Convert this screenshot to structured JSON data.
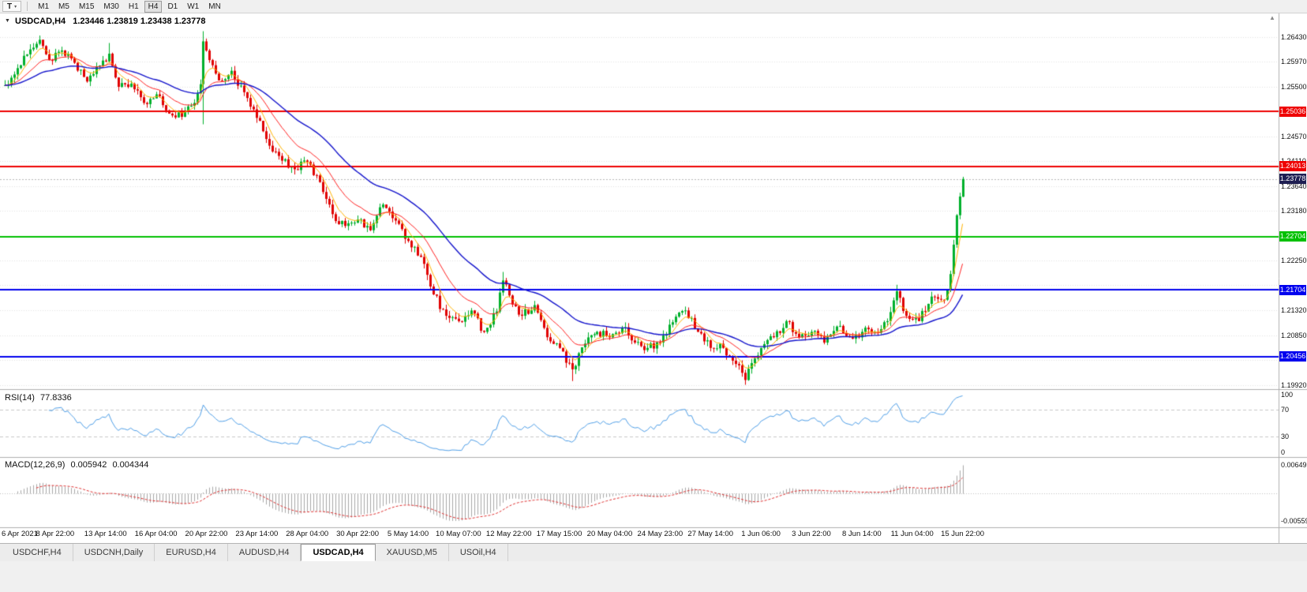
{
  "toolbar": {
    "tool_button_label": "T",
    "timeframes": [
      "M1",
      "M5",
      "M15",
      "M30",
      "H1",
      "H4",
      "D1",
      "W1",
      "MN"
    ],
    "active_timeframe": "H4"
  },
  "chart": {
    "title_symbol": "USDCAD,H4",
    "title_ohlc": "1.23446 1.23819 1.23438 1.23778",
    "current_price": {
      "value": "1.23778",
      "price": 1.23778,
      "color": "#1e1e52"
    },
    "hlines": [
      {
        "value": "1.25036",
        "price": 1.25036,
        "color": "#ee0000",
        "name": "resistance-line-1"
      },
      {
        "value": "1.24013",
        "price": 1.24013,
        "color": "#ee0000",
        "name": "resistance-line-2"
      },
      {
        "value": "1.22704",
        "price": 1.22704,
        "color": "#00c000",
        "name": "support-line-green"
      },
      {
        "value": "1.21704",
        "price": 1.21704,
        "color": "#0000ee",
        "name": "support-line-blue-1"
      },
      {
        "value": "1.20456",
        "price": 1.20456,
        "color": "#0000ee",
        "name": "support-line-blue-2"
      }
    ],
    "price_axis": {
      "ticks": [
        {
          "label": "1.26430",
          "price": 1.2643
        },
        {
          "label": "1.25970",
          "price": 1.2597
        },
        {
          "label": "1.25500",
          "price": 1.255
        },
        {
          "label": "1.25040",
          "price": 1.2504
        },
        {
          "label": "1.24570",
          "price": 1.2457
        },
        {
          "label": "1.24110",
          "price": 1.2411
        },
        {
          "label": "1.23640",
          "price": 1.2364
        },
        {
          "label": "1.23180",
          "price": 1.2318
        },
        {
          "label": "1.22710",
          "price": 1.2271
        },
        {
          "label": "1.22250",
          "price": 1.2225
        },
        {
          "label": "1.21790",
          "price": 1.2179
        },
        {
          "label": "1.21320",
          "price": 1.2132
        },
        {
          "label": "1.20850",
          "price": 1.2085
        },
        {
          "label": "1.20390",
          "price": 1.2039
        },
        {
          "label": "1.19920",
          "price": 1.1992
        }
      ]
    },
    "time_axis": [
      {
        "label": "6 Apr 2021",
        "i": 0
      },
      {
        "label": "8 Apr 22:00",
        "i": 16
      },
      {
        "label": "13 Apr 14:00",
        "i": 32
      },
      {
        "label": "16 Apr 04:00",
        "i": 48
      },
      {
        "label": "20 Apr 22:00",
        "i": 64
      },
      {
        "label": "23 Apr 14:00",
        "i": 80
      },
      {
        "label": "28 Apr 04:00",
        "i": 96
      },
      {
        "label": "30 Apr 22:00",
        "i": 112
      },
      {
        "label": "5 May 14:00",
        "i": 128
      },
      {
        "label": "10 May 07:00",
        "i": 144
      },
      {
        "label": "12 May 22:00",
        "i": 160
      },
      {
        "label": "17 May 15:00",
        "i": 176
      },
      {
        "label": "20 May 04:00",
        "i": 192
      },
      {
        "label": "24 May 23:00",
        "i": 208
      },
      {
        "label": "27 May 14:00",
        "i": 224
      },
      {
        "label": "1 Jun 06:00",
        "i": 240
      },
      {
        "label": "3 Jun 22:00",
        "i": 256
      },
      {
        "label": "8 Jun 14:00",
        "i": 272
      },
      {
        "label": "11 Jun 04:00",
        "i": 288
      },
      {
        "label": "15 Jun 22:00",
        "i": 304
      }
    ],
    "colors": {
      "up": "#00b02c",
      "down": "#e00000",
      "ma_fast": "#ffb400",
      "ma_mid": "#ff2222",
      "ma_slow": "#1414cc",
      "rsi": "#4f9fe8",
      "macd_bar": "#a8a8a8",
      "macd_signal": "#e03030",
      "grid": "#e3e3e3"
    }
  },
  "rsi": {
    "label": "RSI(14)",
    "value": "77.8336",
    "ticks": [
      {
        "label": "100",
        "v": 100
      },
      {
        "label": "70",
        "v": 70
      },
      {
        "label": "30",
        "v": 30
      },
      {
        "label": "0",
        "v": 0
      }
    ],
    "levels": [
      70,
      30
    ]
  },
  "macd": {
    "label": "MACD(12,26,9)",
    "value": "0.005942",
    "signal": "0.004344",
    "axis_top": "0.006491",
    "axis_bottom": "-0.005593"
  },
  "tabs": [
    {
      "label": "USDCHF,H4",
      "active": false
    },
    {
      "label": "USDCNH,Daily",
      "active": false
    },
    {
      "label": "EURUSD,H4",
      "active": false
    },
    {
      "label": "AUDUSD,H4",
      "active": false
    },
    {
      "label": "USDCAD,H4",
      "active": true
    },
    {
      "label": "XAUUSD,M5",
      "active": false
    },
    {
      "label": "USOil,H4",
      "active": false
    }
  ],
  "chart_data": {
    "type": "candlestick",
    "symbol": "USDCAD",
    "timeframe": "H4",
    "last_candle": {
      "open": 1.23446,
      "high": 1.23819,
      "low": 1.23438,
      "close": 1.23778
    },
    "price_axis_range": [
      1.1992,
      1.2643
    ],
    "n_candles": 305,
    "candles_per_time_tick": 16,
    "price_path_anchors": [
      [
        0,
        1.2553
      ],
      [
        4,
        1.2585
      ],
      [
        8,
        1.262
      ],
      [
        11,
        1.2638
      ],
      [
        14,
        1.26
      ],
      [
        18,
        1.2618
      ],
      [
        22,
        1.2595
      ],
      [
        26,
        1.256
      ],
      [
        30,
        1.259
      ],
      [
        33,
        1.2612
      ],
      [
        36,
        1.255
      ],
      [
        40,
        1.2556
      ],
      [
        44,
        1.252
      ],
      [
        48,
        1.2536
      ],
      [
        52,
        1.25
      ],
      [
        56,
        1.2494
      ],
      [
        60,
        1.252
      ],
      [
        62,
        1.2555
      ],
      [
        63,
        1.2635
      ],
      [
        65,
        1.26
      ],
      [
        68,
        1.2562
      ],
      [
        72,
        1.258
      ],
      [
        76,
        1.254
      ],
      [
        80,
        1.2492
      ],
      [
        84,
        1.244
      ],
      [
        88,
        1.2412
      ],
      [
        92,
        1.2396
      ],
      [
        96,
        1.241
      ],
      [
        100,
        1.2372
      ],
      [
        104,
        1.2312
      ],
      [
        108,
        1.229
      ],
      [
        112,
        1.2302
      ],
      [
        116,
        1.2282
      ],
      [
        120,
        1.233
      ],
      [
        124,
        1.23
      ],
      [
        128,
        1.2262
      ],
      [
        132,
        1.2232
      ],
      [
        136,
        1.2162
      ],
      [
        140,
        1.2122
      ],
      [
        144,
        1.2112
      ],
      [
        148,
        1.2132
      ],
      [
        152,
        1.2092
      ],
      [
        156,
        1.213
      ],
      [
        158,
        1.2188
      ],
      [
        160,
        1.216
      ],
      [
        164,
        1.2122
      ],
      [
        168,
        1.2142
      ],
      [
        172,
        1.2082
      ],
      [
        176,
        1.2062
      ],
      [
        180,
        1.2022
      ],
      [
        184,
        1.207
      ],
      [
        188,
        1.2092
      ],
      [
        192,
        1.2082
      ],
      [
        196,
        1.21
      ],
      [
        200,
        1.2072
      ],
      [
        204,
        1.2062
      ],
      [
        208,
        1.2072
      ],
      [
        212,
        1.211
      ],
      [
        216,
        1.2132
      ],
      [
        220,
        1.2092
      ],
      [
        224,
        1.2062
      ],
      [
        228,
        1.2062
      ],
      [
        232,
        1.2032
      ],
      [
        235,
        1.2002
      ],
      [
        238,
        1.2042
      ],
      [
        240,
        1.2062
      ],
      [
        244,
        1.2082
      ],
      [
        248,
        1.2112
      ],
      [
        252,
        1.2082
      ],
      [
        256,
        1.2092
      ],
      [
        260,
        1.2072
      ],
      [
        264,
        1.2102
      ],
      [
        268,
        1.2082
      ],
      [
        272,
        1.2092
      ],
      [
        276,
        1.2092
      ],
      [
        280,
        1.2112
      ],
      [
        283,
        1.2168
      ],
      [
        286,
        1.2122
      ],
      [
        290,
        1.2112
      ],
      [
        294,
        1.2158
      ],
      [
        298,
        1.2152
      ],
      [
        300,
        1.22
      ],
      [
        301,
        1.2255
      ],
      [
        302,
        1.231
      ],
      [
        303,
        1.2345
      ],
      [
        304,
        1.23778
      ]
    ],
    "wick_extremes": [
      {
        "i": 11,
        "h": 1.2646
      },
      {
        "i": 33,
        "h": 1.2632
      },
      {
        "i": 63,
        "h": 1.2654,
        "l": 1.248
      },
      {
        "i": 158,
        "h": 1.2204
      },
      {
        "i": 180,
        "l": 1.2
      },
      {
        "i": 235,
        "l": 1.1993
      },
      {
        "i": 283,
        "h": 1.218
      }
    ],
    "horizontal_lines": [
      1.25036,
      1.24013,
      1.22704,
      1.21704,
      1.20456
    ],
    "current_price": 1.23778,
    "indicators": {
      "rsi": {
        "period": 14,
        "current": 77.8336,
        "scale": [
          0,
          100
        ],
        "levels": [
          70,
          30
        ]
      },
      "macd": {
        "fast": 12,
        "slow": 26,
        "signal": 9,
        "current": 0.005942,
        "current_signal": 0.004344,
        "axis_max": 0.006491,
        "axis_min": -0.005593
      }
    }
  }
}
